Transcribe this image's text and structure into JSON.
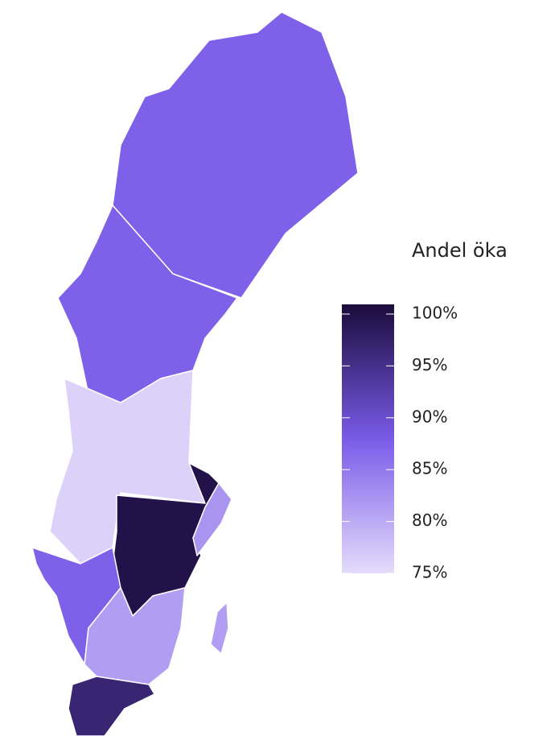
{
  "map": {
    "title": "Andel öka",
    "scale": {
      "lim": [
        75,
        100
      ],
      "ticks": [
        {
          "value": 100,
          "label": "100%"
        },
        {
          "value": 95,
          "label": "95%"
        },
        {
          "value": 90,
          "label": "90%"
        },
        {
          "value": 85,
          "label": "85%"
        },
        {
          "value": 80,
          "label": "80%"
        },
        {
          "value": 75,
          "label": "75%"
        }
      ],
      "colors": [
        "#e4dcfb",
        "#7a5be8",
        "#1b0b3b"
      ]
    },
    "regions": {
      "values": [
        87,
        87,
        76,
        99,
        82,
        87,
        81,
        96,
        81
      ]
    }
  }
}
